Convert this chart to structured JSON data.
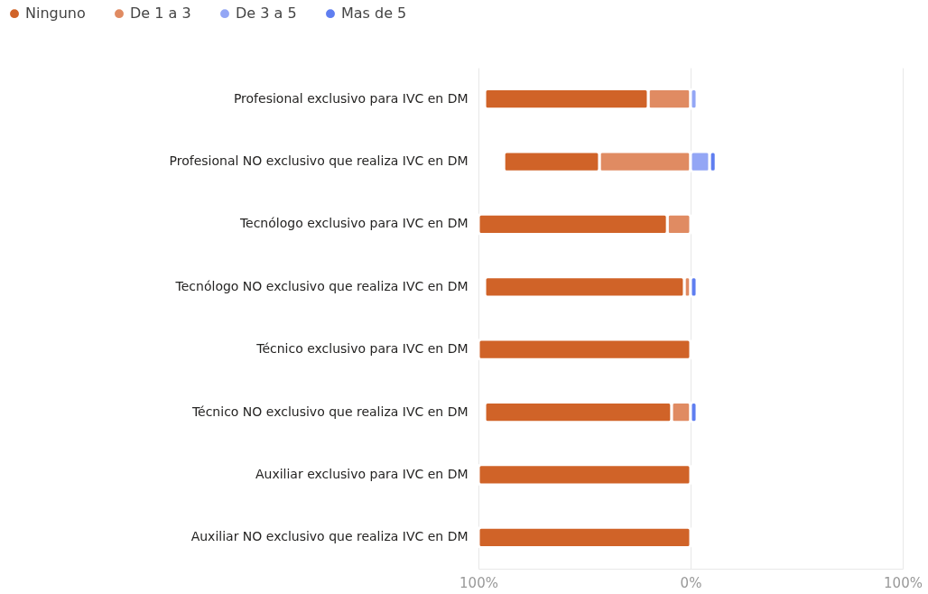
{
  "chart_data": {
    "type": "bar",
    "orientation": "horizontal",
    "stacked": true,
    "categories": [
      "Profesional exclusivo para IVC en DM",
      "Profesional NO exclusivo que realiza IVC en DM",
      "Tecnólogo exclusivo para IVC en DM",
      "Tecnólogo NO exclusivo que realiza IVC en DM",
      "Técnico exclusivo para IVC en DM",
      "Técnico  NO exclusivo que realiza  IVC en DM",
      "Auxiliar exclusivo para IVC en DM",
      "Auxiliar NO exclusivo que realiza IVC en DM"
    ],
    "series": [
      {
        "name": "Ninguno",
        "color": "#d06328",
        "values": [
          -77,
          -45,
          -89,
          -94,
          -100,
          -88,
          -100,
          -100
        ]
      },
      {
        "name": "De 1 a 3",
        "color": "#e08b62",
        "values": [
          -20,
          -43,
          -11,
          -3,
          null,
          -9,
          null,
          null
        ]
      },
      {
        "name": "De 3 a 5",
        "color": "#93a6f5",
        "values": [
          3,
          9,
          null,
          null,
          null,
          null,
          null,
          null
        ]
      },
      {
        "name": "Mas de 5",
        "color": "#5f7ef0",
        "values": [
          null,
          3,
          null,
          3,
          null,
          3,
          null,
          null
        ]
      }
    ],
    "xlim": [
      -100,
      100
    ],
    "xticks": [
      {
        "value": -100,
        "label": "100%"
      },
      {
        "value": 0,
        "label": "0%"
      },
      {
        "value": 100,
        "label": "100%"
      }
    ],
    "grid": "x",
    "legend": "top left"
  }
}
